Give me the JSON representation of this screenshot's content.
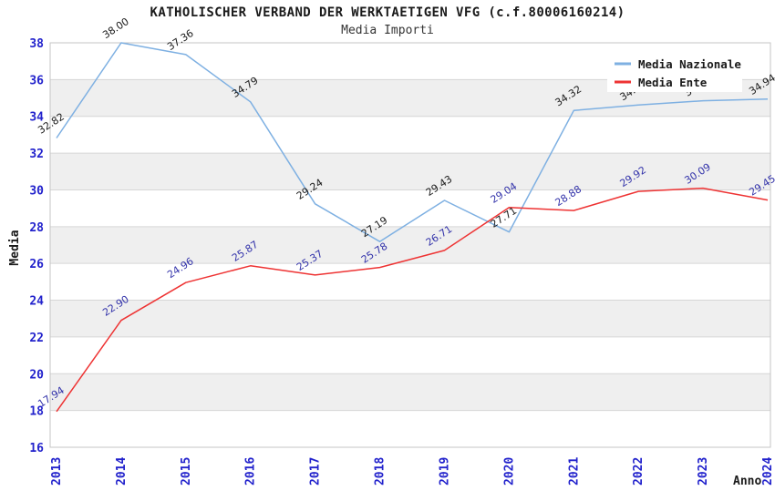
{
  "header": {
    "title": "KATHOLISCHER VERBAND DER WERKTAETIGEN VFG (c.f.80006160214)",
    "subtitle": "Media Importi"
  },
  "chart_data": {
    "type": "line",
    "x": [
      "2013",
      "2014",
      "2015",
      "2016",
      "2017",
      "2018",
      "2019",
      "2020",
      "2021",
      "2022",
      "2023",
      "2024"
    ],
    "xlabel": "Anno",
    "ylabel": "Media",
    "ylim": [
      16,
      38
    ],
    "ytick_step": 2,
    "grid": true,
    "legend_position": "top-right",
    "plot_band_colors": [
      "#ffffff",
      "#efefef"
    ],
    "grid_color": "#d6d6d6",
    "plot_border_color": "#c4c4c4",
    "axis_tick_label_color": "#2222cc",
    "axis_title_color": "#1a1a1a",
    "series": [
      {
        "name": "Media Nazionale",
        "color": "#7eb0e2",
        "label_color": "#1a1a1a",
        "values": [
          32.82,
          38.0,
          37.36,
          34.79,
          29.24,
          27.19,
          29.43,
          27.71,
          34.32,
          34.62,
          34.85,
          34.94
        ]
      },
      {
        "name": "Media Ente",
        "color": "#ee3333",
        "label_color": "#3333aa",
        "values": [
          17.94,
          22.9,
          24.96,
          25.87,
          25.37,
          25.78,
          26.71,
          29.04,
          28.88,
          29.92,
          30.09,
          29.45
        ]
      }
    ]
  }
}
